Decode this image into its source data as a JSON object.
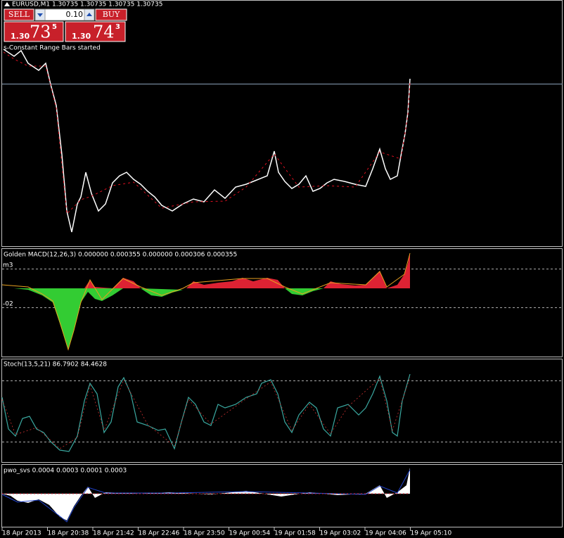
{
  "header": {
    "symbol": "EURUSD,M1  1.30735 1.30735 1.30735 1.30735"
  },
  "trade_panel": {
    "sell": "SELL",
    "lot": "0.10",
    "buy": "BUY",
    "bid_big": "1.30",
    "bid_main": "73",
    "bid_small": "5",
    "ask_big": "1.30",
    "ask_main": "74",
    "ask_small": "3"
  },
  "main_pane": {
    "note": "s-Constant Range Bars started"
  },
  "macd_pane": {
    "title": "Golden MACD(12,26,3) 0.000000 0.000355 0.000000 0.000306 0.000355",
    "upper_label": "m3",
    "lower_label": "-02"
  },
  "stoch_pane": {
    "title": "Stoch(13,5,21) 86.7902 84.4628"
  },
  "pwo_pane": {
    "title": "pwo_svs 0.0004 0.0003 0.0001 0.0003"
  },
  "time_axis": [
    "18 Apr 2013",
    "18 Apr 20:38",
    "18 Apr 21:42",
    "18 Apr 22:46",
    "18 Apr 23:50",
    "19 Apr 00:54",
    "19 Apr 01:58",
    "19 Apr 03:02",
    "19 Apr 04:06",
    "19 Apr 05:10"
  ]
}
